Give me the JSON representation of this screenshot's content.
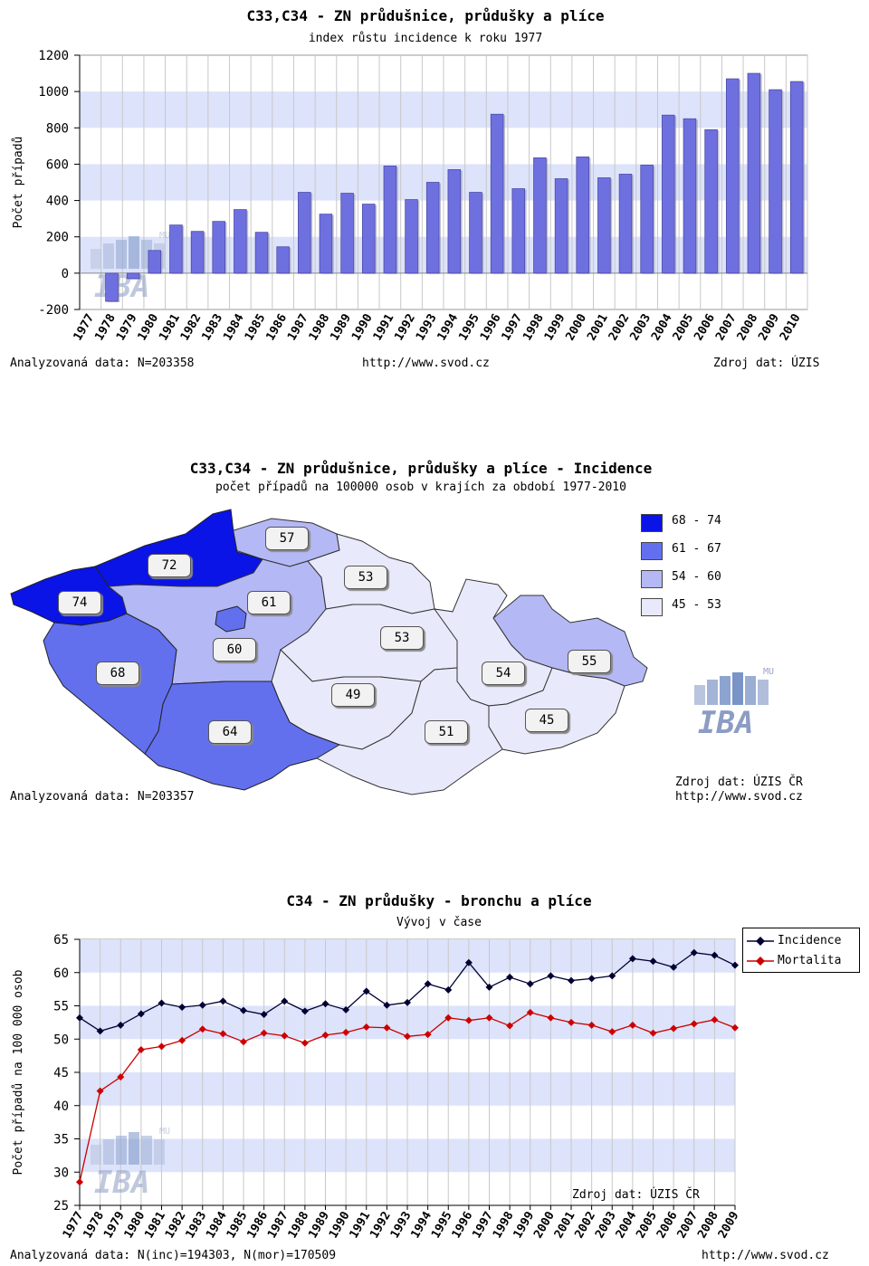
{
  "chart1": {
    "title": "C33,C34 - ZN průdušnice, průdušky a plíce",
    "subtitle": "index růstu incidence k roku 1977",
    "footer_left": "Analyzovaná data: N=203358",
    "footer_center": "http://www.svod.cz",
    "footer_right": "Zdroj dat: ÚZIS"
  },
  "chart2": {
    "title": "C33,C34 - ZN průdušnice, průdušky a plíce - Incidence",
    "subtitle": "počet případů na 100000 osob v krajích za období 1977-2010",
    "legend": [
      {
        "range": "68 - 74",
        "color": "#0a14e6"
      },
      {
        "range": "61 - 67",
        "color": "#6270ee"
      },
      {
        "range": "54 - 60",
        "color": "#b4b8f4"
      },
      {
        "range": "45 - 53",
        "color": "#e8eafb"
      }
    ],
    "regions": [
      "57",
      "72",
      "53",
      "74",
      "61",
      "53",
      "60",
      "55",
      "54",
      "68",
      "49",
      "45",
      "64",
      "51"
    ],
    "footer_left": "Analyzovaná data: N=203357",
    "footer_right_1": "Zdroj dat: ÚZIS ČR",
    "footer_right_2": "http://www.svod.cz"
  },
  "chart3": {
    "title": "C34 - ZN průdušky - bronchu a plíce",
    "subtitle": "Vývoj v čase",
    "source": "Zdroj dat: ÚZIS ČR",
    "footer_left": "Analyzovaná data: N(inc)=194303, N(mor)=170509",
    "footer_right": "http://www.svod.cz"
  },
  "logo": {
    "text": "IBA",
    "badge": "MU"
  },
  "colors": {
    "bar": "#6f70e0",
    "band": "#dde3fa",
    "incidence": "#000033",
    "mortalita": "#cc0000"
  },
  "chart_data": [
    {
      "type": "bar",
      "title": "C33,C34 - ZN průdušnice, průdušky a plíce",
      "subtitle": "index růstu incidence k roku 1977",
      "xlabel": "",
      "ylabel": "Počet případů",
      "ylim": [
        -200,
        1200
      ],
      "yticks": [
        -200,
        0,
        200,
        400,
        600,
        800,
        1000,
        1200
      ],
      "categories": [
        "1977",
        "1978",
        "1979",
        "1980",
        "1981",
        "1982",
        "1983",
        "1984",
        "1985",
        "1986",
        "1987",
        "1988",
        "1989",
        "1990",
        "1991",
        "1992",
        "1993",
        "1994",
        "1995",
        "1996",
        "1997",
        "1998",
        "1999",
        "2000",
        "2001",
        "2002",
        "2003",
        "2004",
        "2005",
        "2006",
        "2007",
        "2008",
        "2009",
        "2010"
      ],
      "values": [
        0,
        -155,
        -30,
        125,
        265,
        230,
        285,
        350,
        225,
        145,
        445,
        325,
        440,
        380,
        590,
        405,
        500,
        570,
        445,
        875,
        465,
        635,
        520,
        640,
        525,
        545,
        595,
        870,
        850,
        790,
        1070,
        1100,
        1010,
        1055
      ],
      "grid": true
    },
    {
      "type": "line",
      "title": "C34 - ZN průdušky - bronchu a plíce",
      "subtitle": "Vývoj v čase",
      "xlabel": "",
      "ylabel": "Počet případů na 100 000 osob",
      "ylim": [
        25,
        65
      ],
      "yticks": [
        25,
        30,
        35,
        40,
        45,
        50,
        55,
        60,
        65
      ],
      "x": [
        "1977",
        "1978",
        "1979",
        "1980",
        "1981",
        "1982",
        "1983",
        "1984",
        "1985",
        "1986",
        "1987",
        "1988",
        "1989",
        "1990",
        "1991",
        "1992",
        "1993",
        "1994",
        "1995",
        "1996",
        "1997",
        "1998",
        "1999",
        "2000",
        "2001",
        "2002",
        "2003",
        "2004",
        "2005",
        "2006",
        "2007",
        "2008",
        "2009"
      ],
      "series": [
        {
          "name": "Incidence",
          "color": "#000033",
          "values": [
            53.2,
            51.2,
            52.1,
            53.8,
            55.4,
            54.8,
            55.1,
            55.7,
            54.3,
            53.7,
            55.7,
            54.2,
            55.3,
            54.4,
            57.2,
            55.1,
            55.5,
            58.3,
            57.4,
            61.5,
            57.8,
            59.3,
            58.3,
            59.5,
            58.8,
            59.1,
            59.5,
            62.1,
            61.7,
            60.8,
            63.0,
            62.6,
            61.1
          ]
        },
        {
          "name": "Mortalita",
          "color": "#cc0000",
          "values": [
            28.5,
            42.2,
            44.3,
            48.4,
            48.9,
            49.8,
            51.5,
            50.8,
            49.6,
            50.9,
            50.5,
            49.4,
            50.6,
            51.0,
            51.8,
            51.7,
            50.4,
            50.7,
            53.2,
            52.8,
            53.2,
            52.0,
            54.0,
            53.2,
            52.5,
            52.1,
            51.1,
            52.1,
            50.9,
            51.6,
            52.3,
            52.9,
            51.7
          ]
        }
      ],
      "legend": "top-right",
      "grid": true
    }
  ]
}
